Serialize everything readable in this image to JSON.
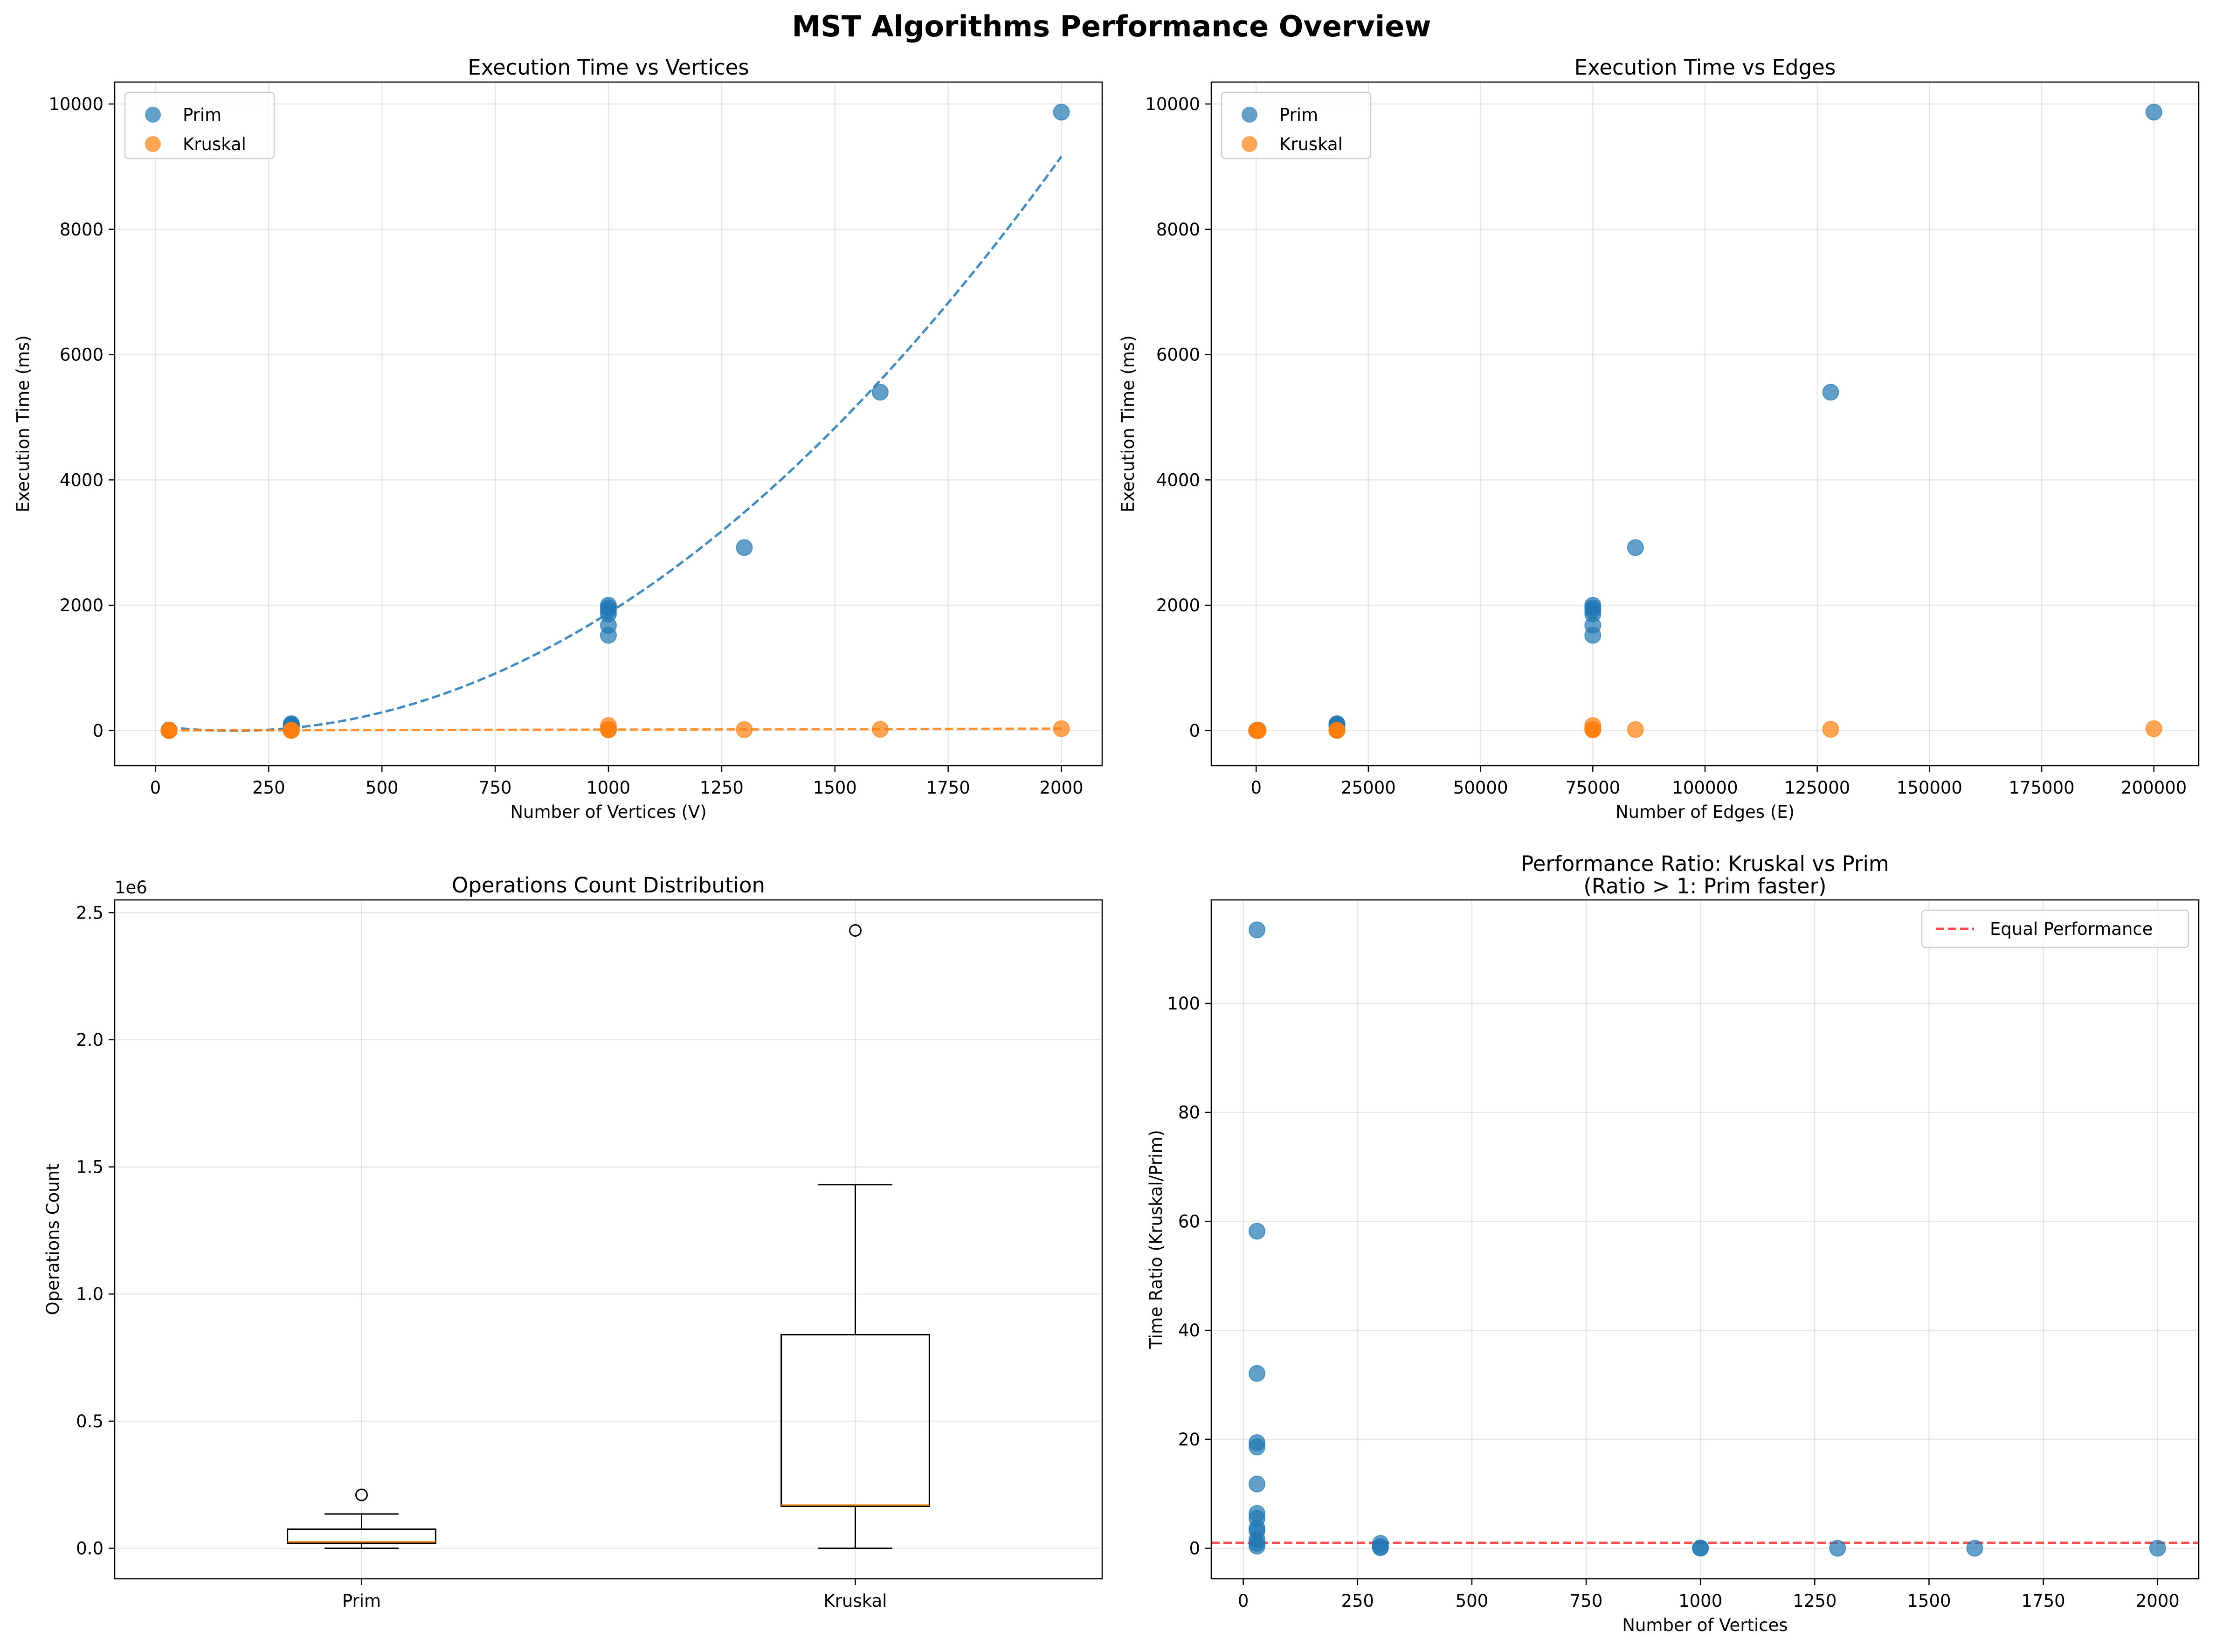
{
  "figure": {
    "title": "MST Algorithms Performance Overview"
  },
  "colors": {
    "prim": "#1f77b4",
    "kruskal": "#ff7f0e",
    "equal_line": "#ff0000",
    "median": "#ff7f0e"
  },
  "chart_data": [
    {
      "id": "time-vs-vertices",
      "type": "scatter",
      "title": "Execution Time vs Vertices",
      "xlabel": "Number of Vertices (V)",
      "ylabel": "Execution Time (ms)",
      "xlim": [
        -90,
        2090
      ],
      "ylim": [
        -560,
        10350
      ],
      "xticks": [
        0,
        250,
        500,
        750,
        1000,
        1250,
        1500,
        1750,
        2000
      ],
      "yticks": [
        0,
        2000,
        4000,
        6000,
        8000,
        10000
      ],
      "grid": true,
      "legend": "upper-left",
      "series": [
        {
          "name": "Prim",
          "color_key": "prim",
          "x": [
            30,
            30,
            30,
            30,
            30,
            30,
            300,
            300,
            300,
            300,
            1000,
            1000,
            1000,
            1000,
            1000,
            1000,
            1300,
            1600,
            2000
          ],
          "y": [
            2,
            3,
            4,
            5,
            6,
            8,
            60,
            80,
            95,
            110,
            1520,
            1680,
            1860,
            1920,
            1960,
            2000,
            2920,
            5400,
            9870
          ]
        },
        {
          "name": "Kruskal",
          "color_key": "kruskal",
          "x": [
            30,
            30,
            30,
            30,
            30,
            30,
            300,
            300,
            300,
            300,
            1000,
            1000,
            1000,
            1000,
            1300,
            1600,
            2000
          ],
          "y": [
            1,
            1,
            1,
            1,
            1,
            1,
            2,
            3,
            4,
            5,
            10,
            15,
            20,
            80,
            15,
            20,
            30
          ]
        }
      ],
      "trendlines": [
        {
          "color_key": "prim",
          "style": "dashed",
          "x_range": [
            30,
            2000
          ],
          "poly": [
            0.002746,
            -0.95,
            78
          ]
        },
        {
          "color_key": "kruskal",
          "style": "dashed",
          "x_range": [
            30,
            2000
          ],
          "poly": [
            1.5e-06,
            0.011,
            2
          ]
        }
      ]
    },
    {
      "id": "time-vs-edges",
      "type": "scatter",
      "title": "Execution Time vs Edges",
      "xlabel": "Number of Edges (E)",
      "ylabel": "Execution Time (ms)",
      "xlim": [
        -10000,
        210000
      ],
      "ylim": [
        -560,
        10350
      ],
      "xticks": [
        0,
        25000,
        50000,
        75000,
        100000,
        125000,
        150000,
        175000,
        200000
      ],
      "yticks": [
        0,
        2000,
        4000,
        6000,
        8000,
        10000
      ],
      "grid": true,
      "legend": "upper-left",
      "series": [
        {
          "name": "Prim",
          "color_key": "prim",
          "x": [
            100,
            200,
            300,
            400,
            435,
            300,
            18000,
            18000,
            18000,
            18000,
            75000,
            75000,
            75000,
            75000,
            75000,
            75000,
            84500,
            128000,
            200000
          ],
          "y": [
            2,
            3,
            4,
            5,
            6,
            8,
            60,
            80,
            95,
            110,
            1520,
            1680,
            1860,
            1920,
            1960,
            2000,
            2920,
            5400,
            9870
          ]
        },
        {
          "name": "Kruskal",
          "color_key": "kruskal",
          "x": [
            100,
            200,
            300,
            400,
            435,
            300,
            18000,
            18000,
            18000,
            18000,
            75000,
            75000,
            75000,
            75000,
            84500,
            128000,
            200000
          ],
          "y": [
            1,
            1,
            1,
            1,
            1,
            1,
            2,
            3,
            4,
            5,
            10,
            15,
            20,
            80,
            15,
            20,
            30
          ]
        }
      ]
    },
    {
      "id": "ops-distribution",
      "type": "box",
      "title": "Operations Count Distribution",
      "xlabel": "",
      "ylabel": "Operations Count",
      "offset_text": "1e6",
      "ylim": [
        -120000,
        2550000
      ],
      "yticks": [
        0.0,
        0.5,
        1.0,
        1.5,
        2.0,
        2.5
      ],
      "ytick_scale": 1000000,
      "grid": true,
      "categories": [
        "Prim",
        "Kruskal"
      ],
      "boxes": [
        {
          "name": "Prim",
          "whisker_low": 0,
          "q1": 20000,
          "median": 25000,
          "q3": 75000,
          "whisker_high": 135000,
          "outliers": [
            210000
          ]
        },
        {
          "name": "Kruskal",
          "whisker_low": 0,
          "q1": 165000,
          "median": 170000,
          "q3": 840000,
          "whisker_high": 1430000,
          "outliers": [
            2430000
          ]
        }
      ]
    },
    {
      "id": "ratio",
      "type": "scatter",
      "title": "Performance Ratio: Kruskal vs Prim",
      "subtitle": "(Ratio > 1: Prim faster)",
      "xlabel": "Number of Vertices",
      "ylabel": "Time Ratio (Kruskal/Prim)",
      "xlim": [
        -70,
        2090
      ],
      "ylim": [
        -5.6,
        119
      ],
      "xticks": [
        0,
        250,
        500,
        750,
        1000,
        1250,
        1500,
        1750,
        2000
      ],
      "yticks": [
        0,
        20,
        40,
        60,
        80,
        100
      ],
      "grid": true,
      "legend": "upper-right",
      "series": [
        {
          "name": "",
          "color_key": "prim",
          "x": [
            30,
            30,
            30,
            30,
            30,
            30,
            30,
            30,
            30,
            30,
            30,
            30,
            30,
            300,
            300,
            300,
            1000,
            1000,
            1300,
            1600,
            2000
          ],
          "y": [
            113.5,
            58.2,
            32.1,
            19.4,
            18.6,
            11.8,
            6.4,
            5.5,
            3.7,
            3.2,
            1.6,
            0.9,
            0.4,
            0.9,
            0.3,
            0.1,
            0.05,
            0.02,
            0.01,
            0.01,
            0.01
          ]
        }
      ],
      "hline": {
        "y": 1,
        "name": "Equal Performance",
        "color_key": "equal_line",
        "style": "dashed"
      }
    }
  ]
}
